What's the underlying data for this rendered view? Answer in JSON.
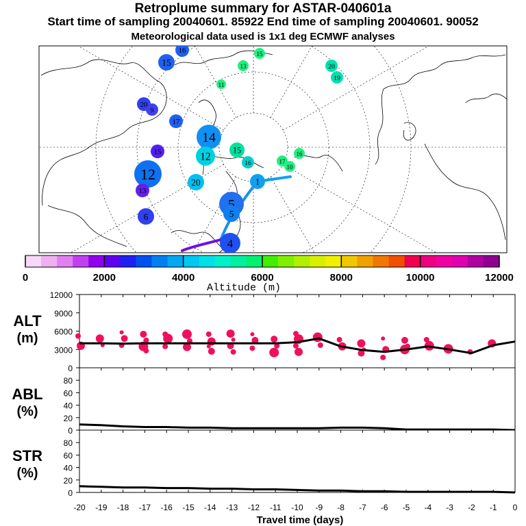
{
  "header": {
    "title": "Retroplume summary for ASTAR-040601a",
    "times": "Start time of sampling 20040601. 85922     End time of sampling 20040601. 90052",
    "met": "Meteorological data used is 1x1 deg ECMWF analyses"
  },
  "colorbar": {
    "label": "Altitude (m)",
    "ticks": [
      "0",
      "2000",
      "4000",
      "6000",
      "8000",
      "10000",
      "12000"
    ],
    "colors": [
      "#f7d8f7",
      "#f0b0f0",
      "#e080f0",
      "#c040f0",
      "#9000f0",
      "#6000f0",
      "#2020f0",
      "#0050f0",
      "#0080f0",
      "#00a8f0",
      "#00c8f0",
      "#00e0e8",
      "#00f0c8",
      "#00f0a0",
      "#00f070",
      "#40f000",
      "#80f000",
      "#b0f000",
      "#d8f000",
      "#f0f000",
      "#f0c800",
      "#f0a000",
      "#f07800",
      "#f05000",
      "#f00050",
      "#f00080",
      "#f000a0",
      "#e000b0",
      "#b000a0",
      "#900090"
    ]
  },
  "map": {
    "markers": [
      {
        "label": "16",
        "color": "#2060f0"
      },
      {
        "label": "15",
        "color": "#2060f0"
      },
      {
        "label": "20",
        "color": "#3040f0"
      },
      {
        "label": "9",
        "color": "#4040f0"
      },
      {
        "label": "17",
        "color": "#2060f0"
      },
      {
        "label": "14",
        "color": "#1090f0"
      },
      {
        "label": "15",
        "color": "#5020f0"
      },
      {
        "label": "12",
        "color": "#1070f0"
      },
      {
        "label": "6",
        "color": "#3040f0"
      },
      {
        "label": "15",
        "color": "#00e0a0"
      },
      {
        "label": "16",
        "color": "#00d0d0"
      },
      {
        "label": "20",
        "color": "#00c0f0"
      },
      {
        "label": "12",
        "color": "#00d0e0"
      },
      {
        "label": "13",
        "color": "#6020f0"
      },
      {
        "label": "1",
        "color": "#10a0f0"
      },
      {
        "label": "5",
        "color": "#2070f0"
      },
      {
        "label": "5",
        "color": "#1080f0"
      },
      {
        "label": "4",
        "color": "#2050f0"
      },
      {
        "label": "20",
        "color": "#00e0b0"
      },
      {
        "label": "19",
        "color": "#00e0b0"
      },
      {
        "label": "13",
        "color": "#20f080"
      },
      {
        "label": "16",
        "color": "#20f080"
      },
      {
        "label": "15",
        "color": "#20f080"
      },
      {
        "label": "11",
        "color": "#20f080"
      },
      {
        "label": "17",
        "color": "#20f080"
      },
      {
        "label": "10",
        "color": "#20f080"
      }
    ]
  },
  "chart_data": [
    {
      "type": "scatter+line",
      "panel_label": "ALT",
      "panel_unit": "(m)",
      "x": [
        -20,
        -19,
        -18,
        -17,
        -16,
        -15,
        -14,
        -13,
        -12,
        -11,
        -10,
        -9,
        -8,
        -7,
        -6,
        -5,
        -4,
        -3,
        -2,
        -1,
        0
      ],
      "xticks": [
        "-20",
        "-19",
        "-18",
        "-17",
        "-16",
        "-15",
        "-14",
        "-13",
        "-12",
        "-11",
        "-10",
        "-9",
        "-8",
        "-7",
        "-6",
        "-5",
        "-4",
        "-3",
        "-2",
        "-1",
        "0"
      ],
      "xlabel": "Travel time (days)",
      "ylim": [
        0,
        12000
      ],
      "yticks": [
        "12000",
        "9000",
        "6000",
        "3000",
        "0"
      ],
      "mean_line": [
        4000,
        4000,
        3950,
        4000,
        4000,
        4000,
        4000,
        4000,
        4000,
        4000,
        4200,
        4800,
        3500,
        2900,
        2600,
        3000,
        3500,
        3000,
        2400,
        3700,
        4300
      ],
      "clusters": [
        {
          "x": -20,
          "alts": [
            5200,
            3600
          ]
        },
        {
          "x": -19,
          "alts": [
            4800,
            3700
          ]
        },
        {
          "x": -18,
          "alts": [
            5800,
            4800,
            3700
          ]
        },
        {
          "x": -17,
          "alts": [
            5500,
            4500,
            3500,
            2800
          ]
        },
        {
          "x": -16,
          "alts": [
            5500,
            4800,
            3500
          ]
        },
        {
          "x": -15,
          "alts": [
            5500,
            4400,
            3400
          ]
        },
        {
          "x": -14,
          "alts": [
            5500,
            4300,
            3500,
            2700
          ]
        },
        {
          "x": -13,
          "alts": [
            5600,
            4600,
            3600,
            2600
          ]
        },
        {
          "x": -12,
          "alts": [
            5500,
            4500,
            3200
          ]
        },
        {
          "x": -11,
          "alts": [
            4700,
            3600,
            2500
          ]
        },
        {
          "x": -10,
          "alts": [
            5600,
            4700,
            3600,
            2600
          ]
        },
        {
          "x": -9,
          "alts": [
            5000,
            3700
          ]
        },
        {
          "x": -8,
          "alts": [
            4600,
            3500
          ]
        },
        {
          "x": -7,
          "alts": [
            4000,
            3000,
            2400
          ]
        },
        {
          "x": -6,
          "alts": [
            4800,
            3000,
            1700
          ]
        },
        {
          "x": -5,
          "alts": [
            4500,
            3500,
            3000
          ]
        },
        {
          "x": -4,
          "alts": [
            4600,
            3600
          ]
        },
        {
          "x": -3,
          "alts": [
            3100
          ]
        },
        {
          "x": -2,
          "alts": [
            2600
          ]
        },
        {
          "x": -1,
          "alts": [
            4000
          ]
        },
        {
          "x": 0,
          "alts": []
        }
      ]
    },
    {
      "type": "line",
      "panel_label": "ABL",
      "panel_unit": "(%)",
      "ylim": [
        0,
        100
      ],
      "yticks": [
        "80",
        "60",
        "40",
        "20",
        "0"
      ],
      "x": [
        -20,
        -19,
        -18,
        -17,
        -16,
        -15,
        -14,
        -13,
        -12,
        -11,
        -10,
        -9,
        -8,
        -7,
        -6,
        -5,
        -4,
        -3,
        -2,
        -1,
        0
      ],
      "values": [
        9,
        8,
        6,
        5,
        5,
        4,
        4,
        3,
        3,
        3,
        3,
        3,
        4,
        4,
        3,
        1,
        1,
        1,
        1,
        1,
        0
      ]
    },
    {
      "type": "line",
      "panel_label": "STR",
      "panel_unit": "(%)",
      "ylim": [
        0,
        100
      ],
      "yticks": [
        "80",
        "60",
        "40",
        "20",
        "0"
      ],
      "x": [
        -20,
        -19,
        -18,
        -17,
        -16,
        -15,
        -14,
        -13,
        -12,
        -11,
        -10,
        -9,
        -8,
        -7,
        -6,
        -5,
        -4,
        -3,
        -2,
        -1,
        0
      ],
      "values": [
        10,
        9,
        8,
        8,
        7,
        7,
        6,
        6,
        5,
        5,
        4,
        3,
        3,
        2,
        2,
        1,
        1,
        1,
        1,
        1,
        0
      ]
    }
  ]
}
